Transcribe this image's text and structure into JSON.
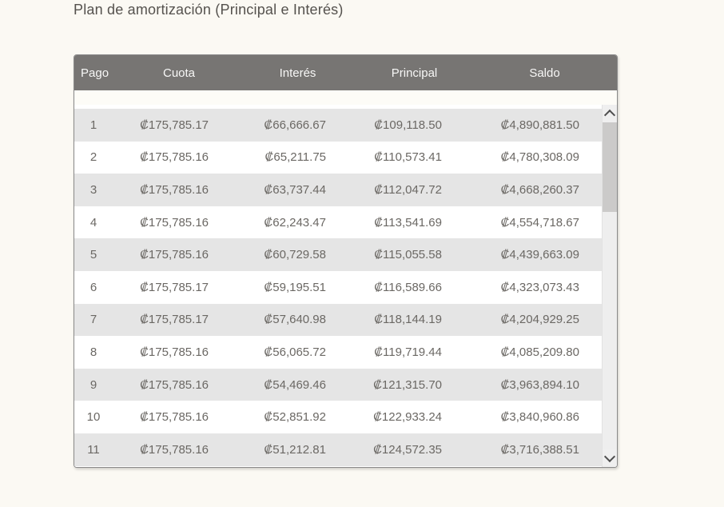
{
  "page": {
    "title": "Plan de amortización (Principal e Interés)"
  },
  "colors": {
    "page_bg": "#fbf9f3",
    "header_bg": "#777573",
    "header_text": "#f7f7f6",
    "row_alt_bg": "#e5e5e5",
    "row_bg": "#ffffff",
    "cell_text": "#6b6864",
    "title_text": "#55524e",
    "scrollbar_track": "#eeeeee",
    "scrollbar_thumb": "#cbcac9"
  },
  "table": {
    "columns": [
      {
        "key": "pago",
        "label": "Pago"
      },
      {
        "key": "cuota",
        "label": "Cuota"
      },
      {
        "key": "interes",
        "label": "Interés"
      },
      {
        "key": "principal",
        "label": "Principal"
      },
      {
        "key": "saldo",
        "label": "Saldo"
      }
    ],
    "rows": [
      {
        "pago": "1",
        "cuota": "₡175,785.17",
        "interes": "₡66,666.67",
        "principal": "₡109,118.50",
        "saldo": "₡4,890,881.50"
      },
      {
        "pago": "2",
        "cuota": "₡175,785.16",
        "interes": "₡65,211.75",
        "principal": "₡110,573.41",
        "saldo": "₡4,780,308.09"
      },
      {
        "pago": "3",
        "cuota": "₡175,785.16",
        "interes": "₡63,737.44",
        "principal": "₡112,047.72",
        "saldo": "₡4,668,260.37"
      },
      {
        "pago": "4",
        "cuota": "₡175,785.16",
        "interes": "₡62,243.47",
        "principal": "₡113,541.69",
        "saldo": "₡4,554,718.67"
      },
      {
        "pago": "5",
        "cuota": "₡175,785.16",
        "interes": "₡60,729.58",
        "principal": "₡115,055.58",
        "saldo": "₡4,439,663.09"
      },
      {
        "pago": "6",
        "cuota": "₡175,785.17",
        "interes": "₡59,195.51",
        "principal": "₡116,589.66",
        "saldo": "₡4,323,073.43"
      },
      {
        "pago": "7",
        "cuota": "₡175,785.17",
        "interes": "₡57,640.98",
        "principal": "₡118,144.19",
        "saldo": "₡4,204,929.25"
      },
      {
        "pago": "8",
        "cuota": "₡175,785.16",
        "interes": "₡56,065.72",
        "principal": "₡119,719.44",
        "saldo": "₡4,085,209.80"
      },
      {
        "pago": "9",
        "cuota": "₡175,785.16",
        "interes": "₡54,469.46",
        "principal": "₡121,315.70",
        "saldo": "₡3,963,894.10"
      },
      {
        "pago": "10",
        "cuota": "₡175,785.16",
        "interes": "₡52,851.92",
        "principal": "₡122,933.24",
        "saldo": "₡3,840,960.86"
      },
      {
        "pago": "11",
        "cuota": "₡175,785.16",
        "interes": "₡51,212.81",
        "principal": "₡124,572.35",
        "saldo": "₡3,716,388.51"
      }
    ]
  },
  "scrollbar": {
    "up_icon": "chevron-up",
    "down_icon": "chevron-down"
  }
}
